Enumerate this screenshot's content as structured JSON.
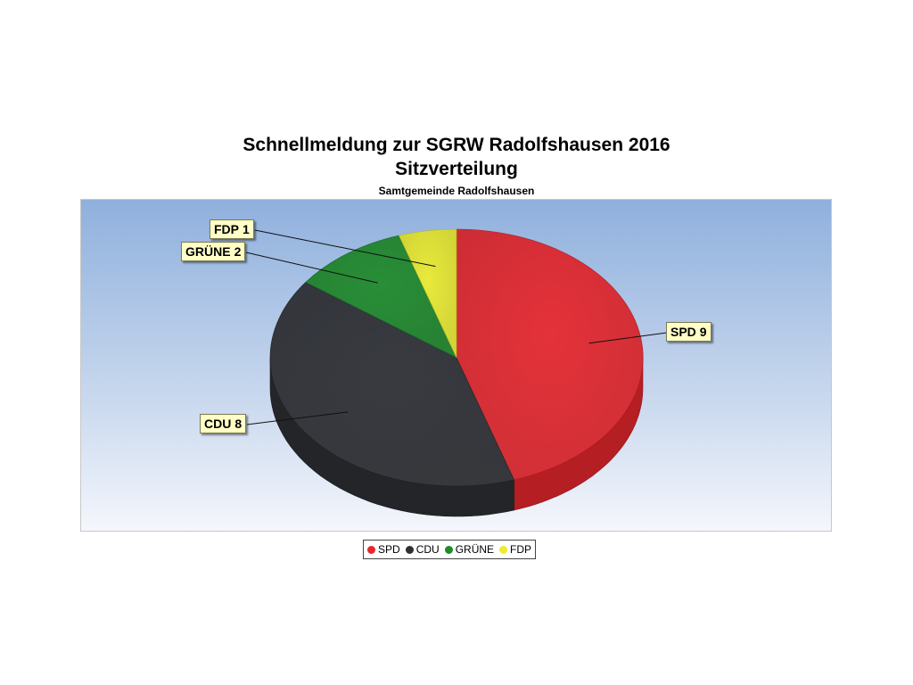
{
  "chart_data": {
    "type": "pie",
    "title": "Schnellmeldung zur SGRW Radolfshausen 2016",
    "subtitle_line2": "Sitzverteilung",
    "subtitle": "Samtgemeinde Radolfshausen",
    "categories": [
      "SPD",
      "CDU",
      "GRÜNE",
      "FDP"
    ],
    "values": [
      9,
      8,
      2,
      1
    ],
    "colors": [
      "#e8262c",
      "#2e2f33",
      "#1f8a2a",
      "#eded2f"
    ],
    "legend_position": "bottom"
  }
}
